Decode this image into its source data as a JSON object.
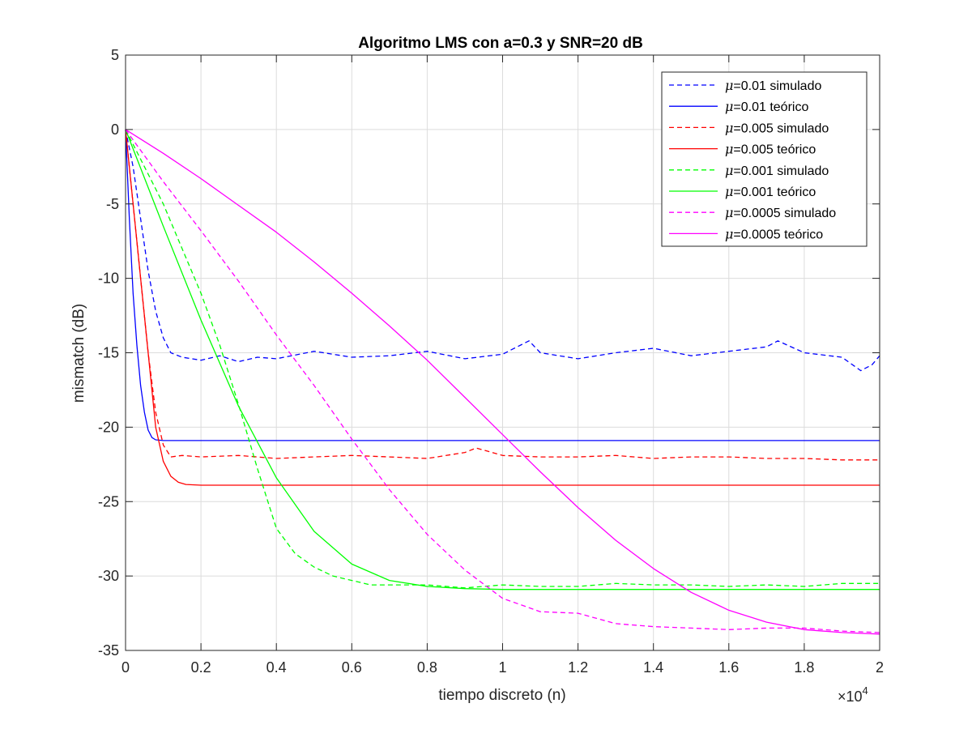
{
  "chart_data": {
    "type": "line",
    "title": "Algoritmo LMS con a=0.3 y SNR=20 dB",
    "xlabel": "tiempo discreto (n)",
    "ylabel": "mismatch (dB)",
    "xlim": [
      0,
      20000
    ],
    "ylim": [
      -35,
      5
    ],
    "x_scale_factor_label": "×10",
    "x_scale_exponent": "4",
    "x_tick_values": [
      0,
      2000,
      4000,
      6000,
      8000,
      10000,
      12000,
      14000,
      16000,
      18000,
      20000
    ],
    "x_tick_labels": [
      "0",
      "0.2",
      "0.4",
      "0.6",
      "0.8",
      "1",
      "1.2",
      "1.4",
      "1.6",
      "1.8",
      "2"
    ],
    "y_tick_values": [
      5,
      0,
      -5,
      -10,
      -15,
      -20,
      -25,
      -30,
      -35
    ],
    "y_tick_labels": [
      "5",
      "0",
      "-5",
      "-10",
      "-15",
      "-20",
      "-25",
      "-30",
      "-35"
    ],
    "grid": true,
    "legend_position": "top-right",
    "series": [
      {
        "name": "=0.01 simulado",
        "mu_symbol": "μ",
        "color": "#0000ff",
        "dash": true,
        "x": [
          0,
          200,
          400,
          600,
          800,
          1000,
          1200,
          1500,
          2000,
          2500,
          3000,
          3500,
          4000,
          5000,
          6000,
          7000,
          8000,
          9000,
          10000,
          10700,
          11000,
          12000,
          13000,
          14000,
          15000,
          16000,
          17000,
          17300,
          18000,
          19000,
          19500,
          19800,
          20000
        ],
        "y": [
          0,
          -2.5,
          -6,
          -9.5,
          -12.2,
          -14,
          -15,
          -15.3,
          -15.5,
          -15.2,
          -15.6,
          -15.3,
          -15.4,
          -14.9,
          -15.3,
          -15.2,
          -14.9,
          -15.4,
          -15.1,
          -14.2,
          -15,
          -15.4,
          -15,
          -14.7,
          -15.2,
          -14.9,
          -14.6,
          -14.2,
          -15,
          -15.3,
          -16.2,
          -15.8,
          -15.2
        ]
      },
      {
        "name": "=0.01 teórico",
        "mu_symbol": "μ",
        "color": "#0000ff",
        "dash": false,
        "x": [
          0,
          100,
          200,
          300,
          400,
          500,
          600,
          700,
          800,
          1000,
          1500,
          2000,
          20000
        ],
        "y": [
          0,
          -6,
          -11,
          -14.5,
          -17.2,
          -19,
          -20.2,
          -20.7,
          -20.85,
          -20.9,
          -20.9,
          -20.9,
          -20.9
        ]
      },
      {
        "name": "=0.005 simulado",
        "mu_symbol": "μ",
        "color": "#ff0000",
        "dash": true,
        "x": [
          0,
          200,
          400,
          600,
          800,
          1000,
          1200,
          1500,
          2000,
          3000,
          4000,
          5000,
          6000,
          7000,
          8000,
          9000,
          9300,
          10000,
          11000,
          12000,
          13000,
          14000,
          15000,
          16000,
          17000,
          18000,
          19000,
          20000
        ],
        "y": [
          0,
          -5,
          -10,
          -15,
          -19,
          -21.2,
          -22,
          -21.9,
          -22,
          -21.9,
          -22.1,
          -22,
          -21.9,
          -22,
          -22.1,
          -21.7,
          -21.4,
          -21.9,
          -22,
          -22,
          -21.9,
          -22.1,
          -22,
          -22,
          -22.1,
          -22.1,
          -22.2,
          -22.2
        ]
      },
      {
        "name": "=0.005 teórico",
        "mu_symbol": "μ",
        "color": "#ff0000",
        "dash": false,
        "x": [
          0,
          200,
          400,
          600,
          800,
          1000,
          1200,
          1400,
          1600,
          2000,
          20000
        ],
        "y": [
          0,
          -5,
          -10,
          -15,
          -20,
          -22.3,
          -23.3,
          -23.7,
          -23.85,
          -23.9,
          -23.9
        ]
      },
      {
        "name": "=0.001 simulado",
        "mu_symbol": "μ",
        "color": "#00ff00",
        "dash": true,
        "x": [
          0,
          500,
          1000,
          1500,
          2000,
          2500,
          3000,
          3500,
          4000,
          4500,
          5000,
          5500,
          6000,
          6500,
          7000,
          8000,
          9000,
          10000,
          11000,
          12000,
          13000,
          14000,
          15000,
          16000,
          17000,
          18000,
          19000,
          20000
        ],
        "y": [
          0,
          -2.5,
          -5,
          -8,
          -11,
          -14.5,
          -18.5,
          -22.8,
          -26.8,
          -28.5,
          -29.4,
          -30,
          -30.3,
          -30.6,
          -30.6,
          -30.6,
          -30.8,
          -30.6,
          -30.7,
          -30.7,
          -30.5,
          -30.6,
          -30.6,
          -30.7,
          -30.6,
          -30.7,
          -30.5,
          -30.5
        ]
      },
      {
        "name": "=0.001 teórico",
        "mu_symbol": "μ",
        "color": "#00ff00",
        "dash": false,
        "x": [
          0,
          1000,
          2000,
          3000,
          4000,
          5000,
          6000,
          7000,
          8000,
          9000,
          10000,
          12000,
          14000,
          16000,
          18000,
          20000
        ],
        "y": [
          0,
          -6.5,
          -12.8,
          -18.6,
          -23.4,
          -27,
          -29.2,
          -30.3,
          -30.7,
          -30.85,
          -30.9,
          -30.9,
          -30.9,
          -30.9,
          -30.9,
          -30.9
        ]
      },
      {
        "name": "=0.0005 simulado",
        "mu_symbol": "μ",
        "color": "#ff00ff",
        "dash": true,
        "x": [
          0,
          1000,
          2000,
          3000,
          4000,
          5000,
          6000,
          7000,
          8000,
          9000,
          10000,
          11000,
          12000,
          13000,
          14000,
          15000,
          16000,
          17000,
          18000,
          19000,
          20000
        ],
        "y": [
          0,
          -3.5,
          -6.8,
          -10.2,
          -13.8,
          -17.2,
          -20.8,
          -24.2,
          -27.2,
          -29.6,
          -31.5,
          -32.4,
          -32.5,
          -33.2,
          -33.4,
          -33.5,
          -33.6,
          -33.5,
          -33.5,
          -33.7,
          -33.8
        ]
      },
      {
        "name": "=0.0005 teórico",
        "mu_symbol": "μ",
        "color": "#ff00ff",
        "dash": false,
        "x": [
          0,
          1000,
          2000,
          3000,
          4000,
          5000,
          6000,
          7000,
          8000,
          9000,
          10000,
          11000,
          12000,
          13000,
          14000,
          15000,
          16000,
          17000,
          18000,
          19000,
          20000
        ],
        "y": [
          0,
          -1.6,
          -3.3,
          -5.1,
          -6.9,
          -8.9,
          -11,
          -13.2,
          -15.5,
          -18,
          -20.5,
          -23,
          -25.4,
          -27.6,
          -29.5,
          -31.1,
          -32.3,
          -33.1,
          -33.6,
          -33.8,
          -33.9
        ]
      }
    ]
  }
}
